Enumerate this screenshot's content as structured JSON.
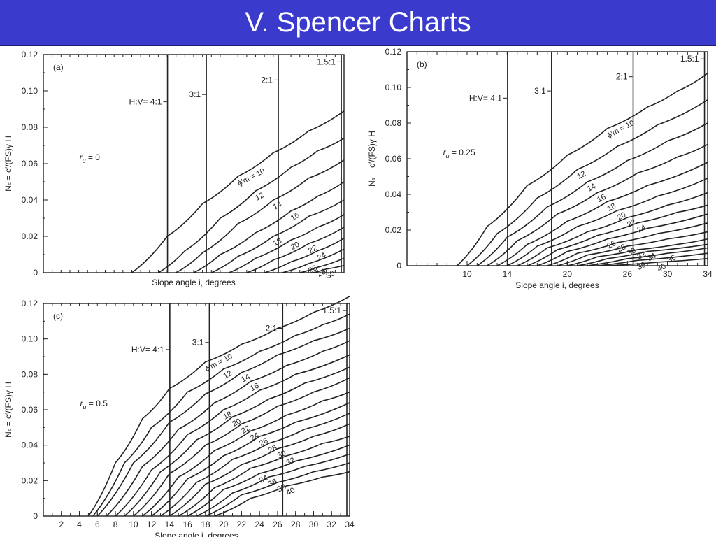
{
  "slide": {
    "title": "V.  Spencer Charts"
  },
  "chart_data": [
    {
      "type": "line",
      "panel_label": "(a)",
      "ru_label": "r",
      "ru_sub": "u",
      "ru_value": " = 0",
      "xlabel": "Slope angle i, degrees",
      "ylabel": "Nₛ = c′/(FS)γ H",
      "xlim": [
        0,
        34
      ],
      "ylim": [
        0,
        0.12
      ],
      "xticks": [],
      "yticks": [
        0,
        0.02,
        0.04,
        0.06,
        0.08,
        0.1,
        0.12
      ],
      "ytick_labels": [
        "0",
        "0.02",
        "0.04",
        "0.06",
        "0.08",
        "0.10",
        "0.12"
      ],
      "ref_lines": [
        {
          "label": "H:V= 4:1",
          "x": 14.04
        },
        {
          "label": "3:1",
          "x": 18.43
        },
        {
          "label": "2:1",
          "x": 26.57
        },
        {
          "label": "1.5:1",
          "x": 33.69
        }
      ],
      "curve_label_prefix": "ϕ′m = ",
      "series": [
        {
          "name": "10",
          "x": [
            10,
            14,
            18,
            22,
            26,
            30,
            34
          ],
          "y": [
            0,
            0.02,
            0.038,
            0.053,
            0.066,
            0.078,
            0.089
          ]
        },
        {
          "name": "12",
          "x": [
            13,
            16,
            20,
            24,
            28,
            31,
            34
          ],
          "y": [
            0,
            0.012,
            0.03,
            0.045,
            0.058,
            0.067,
            0.074
          ]
        },
        {
          "name": "14",
          "x": [
            15,
            18,
            22,
            26,
            30,
            34
          ],
          "y": [
            0,
            0.011,
            0.027,
            0.04,
            0.052,
            0.062
          ]
        },
        {
          "name": "16",
          "x": [
            17,
            20,
            24,
            28,
            31,
            34
          ],
          "y": [
            0,
            0.01,
            0.022,
            0.034,
            0.042,
            0.05
          ]
        },
        {
          "name": "18",
          "x": [
            19,
            22,
            26,
            30,
            34
          ],
          "y": [
            0,
            0.009,
            0.02,
            0.031,
            0.04
          ]
        },
        {
          "name": "20",
          "x": [
            21,
            24,
            28,
            31,
            34
          ],
          "y": [
            0,
            0.008,
            0.018,
            0.025,
            0.032
          ]
        },
        {
          "name": "22",
          "x": [
            23,
            26,
            30,
            34
          ],
          "y": [
            0,
            0.007,
            0.016,
            0.025
          ]
        },
        {
          "name": "24",
          "x": [
            25,
            28,
            31,
            34
          ],
          "y": [
            0,
            0.006,
            0.012,
            0.019
          ]
        },
        {
          "name": "26",
          "x": [
            27,
            30,
            34
          ],
          "y": [
            0,
            0.005,
            0.013
          ]
        },
        {
          "name": "28",
          "x": [
            29,
            31,
            34
          ],
          "y": [
            0,
            0.003,
            0.008
          ]
        },
        {
          "name": "30",
          "x": [
            30.5,
            32,
            34
          ],
          "y": [
            0,
            0.002,
            0.004
          ]
        }
      ]
    },
    {
      "type": "line",
      "panel_label": "(b)",
      "ru_label": "r",
      "ru_sub": "u",
      "ru_value": " = 0.25",
      "xlabel": "Slope angle i, degrees",
      "ylabel": "Nₛ = c′/(FS)γ H",
      "xlim": [
        4,
        34
      ],
      "ylim": [
        0,
        0.12
      ],
      "xticks": [
        10,
        14,
        20,
        26,
        30,
        34
      ],
      "yticks": [
        0,
        0.02,
        0.04,
        0.06,
        0.08,
        0.1,
        0.12
      ],
      "ytick_labels": [
        "0",
        "0.02",
        "0.04",
        "0.06",
        "0.08",
        "0.10",
        "0.12"
      ],
      "ref_lines": [
        {
          "label": "H:V= 4:1",
          "x": 14.04
        },
        {
          "label": "3:1",
          "x": 18.43
        },
        {
          "label": "2:1",
          "x": 26.57
        },
        {
          "label": "1.5:1",
          "x": 33.69
        }
      ],
      "curve_label_prefix": "ϕ′m = ",
      "series": [
        {
          "name": "10",
          "x": [
            9,
            12,
            16,
            20,
            24,
            28,
            31,
            34
          ],
          "y": [
            0,
            0.022,
            0.045,
            0.062,
            0.077,
            0.089,
            0.098,
            0.108
          ]
        },
        {
          "name": "12",
          "x": [
            10,
            13,
            17,
            21,
            25,
            29,
            34
          ],
          "y": [
            0,
            0.018,
            0.038,
            0.054,
            0.067,
            0.079,
            0.093
          ]
        },
        {
          "name": "14",
          "x": [
            11,
            14,
            18,
            22,
            26,
            30,
            34
          ],
          "y": [
            0,
            0.016,
            0.033,
            0.047,
            0.059,
            0.07,
            0.08
          ]
        },
        {
          "name": "16",
          "x": [
            12,
            15,
            19,
            23,
            27,
            31,
            34
          ],
          "y": [
            0,
            0.014,
            0.029,
            0.041,
            0.052,
            0.061,
            0.068
          ]
        },
        {
          "name": "18",
          "x": [
            13,
            16,
            20,
            24,
            28,
            34
          ],
          "y": [
            0,
            0.012,
            0.025,
            0.036,
            0.045,
            0.058
          ]
        },
        {
          "name": "20",
          "x": [
            14,
            17,
            21,
            25,
            29,
            34
          ],
          "y": [
            0,
            0.011,
            0.022,
            0.031,
            0.039,
            0.049
          ]
        },
        {
          "name": "22",
          "x": [
            15,
            18,
            22,
            26,
            30,
            34
          ],
          "y": [
            0,
            0.01,
            0.019,
            0.027,
            0.034,
            0.041
          ]
        },
        {
          "name": "24",
          "x": [
            16,
            19,
            23,
            27,
            31,
            34
          ],
          "y": [
            0,
            0.009,
            0.017,
            0.024,
            0.03,
            0.034
          ]
        },
        {
          "name": "26",
          "x": [
            17,
            20,
            24,
            28,
            34
          ],
          "y": [
            0,
            0.008,
            0.015,
            0.021,
            0.029
          ]
        },
        {
          "name": "28",
          "x": [
            18,
            21,
            25,
            29,
            34
          ],
          "y": [
            0,
            0.007,
            0.013,
            0.018,
            0.024
          ]
        },
        {
          "name": "30",
          "x": [
            19,
            22,
            26,
            30,
            34
          ],
          "y": [
            0,
            0.006,
            0.011,
            0.015,
            0.019
          ]
        },
        {
          "name": "32",
          "x": [
            20,
            23,
            27,
            31,
            34
          ],
          "y": [
            0,
            0.005,
            0.009,
            0.012,
            0.015
          ]
        },
        {
          "name": "34",
          "x": [
            21,
            24,
            28,
            34
          ],
          "y": [
            0,
            0.004,
            0.008,
            0.012
          ]
        },
        {
          "name": "36",
          "x": [
            22,
            26,
            30,
            34
          ],
          "y": [
            0,
            0.004,
            0.007,
            0.01
          ]
        },
        {
          "name": "38",
          "x": [
            23,
            27,
            34
          ],
          "y": [
            0,
            0.003,
            0.007
          ]
        },
        {
          "name": "40",
          "x": [
            24,
            29,
            34
          ],
          "y": [
            0,
            0.002,
            0.004
          ]
        }
      ]
    },
    {
      "type": "line",
      "panel_label": "(c)",
      "ru_label": "r",
      "ru_sub": "u",
      "ru_value": " = 0.5",
      "xlabel": "Slope angle i, degrees",
      "ylabel": "Nₛ = c′/(FS)γ H",
      "xlim": [
        0,
        34
      ],
      "ylim": [
        0,
        0.12
      ],
      "xticks": [
        2,
        4,
        6,
        8,
        10,
        12,
        14,
        16,
        18,
        20,
        22,
        24,
        26,
        28,
        30,
        32,
        34
      ],
      "yticks": [
        0,
        0.02,
        0.04,
        0.06,
        0.08,
        0.1,
        0.12
      ],
      "ytick_labels": [
        "0",
        "0.02",
        "0.04",
        "0.06",
        "0.08",
        "0.10",
        "0.12"
      ],
      "ref_lines": [
        {
          "label": "H:V= 4:1",
          "x": 14.04
        },
        {
          "label": "3:1",
          "x": 18.43
        },
        {
          "label": "2:1",
          "x": 26.57
        },
        {
          "label": "1.5:1",
          "x": 33.69
        }
      ],
      "curve_label_prefix": "ϕ′m = ",
      "series": [
        {
          "name": "10",
          "x": [
            5,
            8,
            11,
            14,
            18,
            22,
            26,
            30,
            34
          ],
          "y": [
            0,
            0.03,
            0.055,
            0.072,
            0.087,
            0.097,
            0.106,
            0.115,
            0.124
          ]
        },
        {
          "name": "12",
          "x": [
            5.5,
            9,
            12,
            16,
            20,
            24,
            28,
            31,
            34
          ],
          "y": [
            0,
            0.03,
            0.05,
            0.07,
            0.083,
            0.093,
            0.102,
            0.108,
            0.114
          ]
        },
        {
          "name": "14",
          "x": [
            6,
            10,
            14,
            18,
            22,
            26,
            30,
            34
          ],
          "y": [
            0,
            0.03,
            0.053,
            0.069,
            0.081,
            0.091,
            0.099,
            0.106
          ]
        },
        {
          "name": "16",
          "x": [
            7,
            11,
            15,
            19,
            23,
            27,
            31,
            34
          ],
          "y": [
            0,
            0.028,
            0.049,
            0.064,
            0.076,
            0.085,
            0.093,
            0.099
          ]
        },
        {
          "name": "18",
          "x": [
            8,
            12,
            16,
            20,
            24,
            28,
            34
          ],
          "y": [
            0,
            0.026,
            0.046,
            0.06,
            0.071,
            0.08,
            0.091
          ]
        },
        {
          "name": "20",
          "x": [
            9,
            13,
            17,
            21,
            25,
            29,
            34
          ],
          "y": [
            0,
            0.025,
            0.043,
            0.056,
            0.066,
            0.075,
            0.084
          ]
        },
        {
          "name": "22",
          "x": [
            10,
            14,
            18,
            22,
            26,
            30,
            34
          ],
          "y": [
            0,
            0.024,
            0.04,
            0.052,
            0.062,
            0.07,
            0.078
          ]
        },
        {
          "name": "24",
          "x": [
            11,
            15,
            19,
            23,
            27,
            31,
            34
          ],
          "y": [
            0,
            0.022,
            0.037,
            0.048,
            0.057,
            0.065,
            0.07
          ]
        },
        {
          "name": "26",
          "x": [
            12,
            16,
            20,
            24,
            28,
            34
          ],
          "y": [
            0,
            0.021,
            0.034,
            0.045,
            0.053,
            0.064
          ]
        },
        {
          "name": "28",
          "x": [
            13,
            17,
            21,
            25,
            29,
            34
          ],
          "y": [
            0,
            0.019,
            0.032,
            0.041,
            0.049,
            0.058
          ]
        },
        {
          "name": "30",
          "x": [
            14,
            18,
            22,
            26,
            30,
            34
          ],
          "y": [
            0,
            0.018,
            0.029,
            0.038,
            0.045,
            0.052
          ]
        },
        {
          "name": "32",
          "x": [
            15,
            19,
            23,
            27,
            31,
            34
          ],
          "y": [
            0,
            0.016,
            0.027,
            0.034,
            0.041,
            0.045
          ]
        },
        {
          "name": "34",
          "x": [
            16,
            20,
            24,
            28,
            34
          ],
          "y": [
            0,
            0.015,
            0.024,
            0.031,
            0.04
          ]
        },
        {
          "name": "36",
          "x": [
            17,
            21,
            25,
            29,
            34
          ],
          "y": [
            0,
            0.013,
            0.022,
            0.028,
            0.035
          ]
        },
        {
          "name": "38",
          "x": [
            18,
            22,
            26,
            30,
            34
          ],
          "y": [
            0,
            0.012,
            0.019,
            0.025,
            0.03
          ]
        },
        {
          "name": "40",
          "x": [
            19,
            23,
            27,
            31,
            34
          ],
          "y": [
            0,
            0.01,
            0.017,
            0.022,
            0.025
          ]
        }
      ]
    }
  ]
}
